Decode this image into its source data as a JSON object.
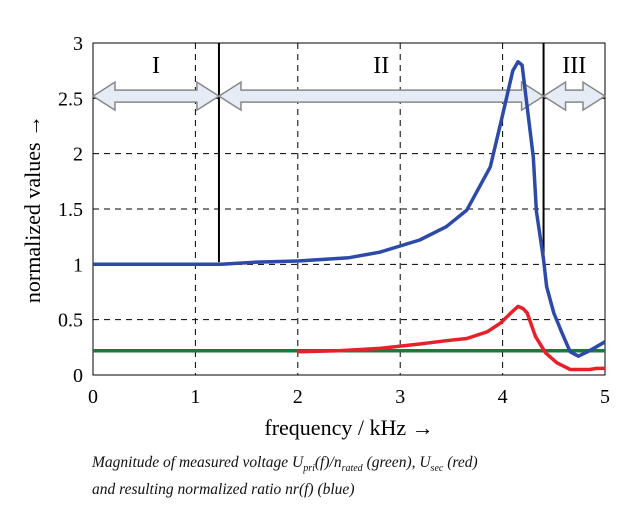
{
  "chart_data": {
    "type": "line",
    "xlabel": "frequency / kHz →",
    "ylabel": "normalized values →",
    "xlim": [
      0,
      5
    ],
    "ylim": [
      0,
      3
    ],
    "xticks": [
      0,
      1,
      2,
      3,
      4,
      5
    ],
    "yticks": [
      0,
      0.5,
      1,
      1.5,
      2,
      2.5,
      3
    ],
    "ytick_labels": [
      "0",
      "0.5",
      "1",
      "1.5",
      "2",
      "2.5",
      "3"
    ],
    "grid": true,
    "regions": [
      {
        "label": "I",
        "from": 0,
        "to": 1.23
      },
      {
        "label": "II",
        "from": 1.23,
        "to": 4.4
      },
      {
        "label": "III",
        "from": 4.4,
        "to": 5
      }
    ],
    "series": [
      {
        "color": "#1a7a3a",
        "x": [
          0,
          5
        ],
        "y": [
          0.22,
          0.22
        ]
      },
      {
        "color": "#e8202a",
        "x": [
          2.0,
          2.4,
          2.8,
          3.19,
          3.45,
          3.65,
          3.85,
          3.98,
          4.08,
          4.15,
          4.2,
          4.24,
          4.32,
          4.42,
          4.53,
          4.66,
          4.85,
          4.92,
          5.0
        ],
        "y": [
          0.21,
          0.22,
          0.24,
          0.28,
          0.31,
          0.33,
          0.39,
          0.47,
          0.56,
          0.62,
          0.6,
          0.56,
          0.35,
          0.2,
          0.11,
          0.05,
          0.05,
          0.06,
          0.06
        ]
      },
      {
        "color": "#2e4aa8",
        "x": [
          0,
          0.6,
          1.25,
          1.6,
          2.0,
          2.5,
          2.8,
          3.19,
          3.45,
          3.65,
          3.88,
          4.0,
          4.1,
          4.15,
          4.19,
          4.24,
          4.3,
          4.33,
          4.4,
          4.43,
          4.5,
          4.58,
          4.66,
          4.74,
          4.85,
          5.0
        ],
        "y": [
          1.0,
          1.0,
          1.0,
          1.02,
          1.03,
          1.06,
          1.11,
          1.22,
          1.34,
          1.49,
          1.88,
          2.35,
          2.75,
          2.83,
          2.8,
          2.42,
          1.97,
          1.48,
          1.04,
          0.8,
          0.56,
          0.38,
          0.21,
          0.17,
          0.22,
          0.3
        ]
      }
    ]
  },
  "caption": {
    "line1_a": "Magnitude of measured voltage U",
    "line1_sub1": "pri",
    "line1_b": "(f)/n",
    "line1_sub2": "rated",
    "line1_c": " (green), U",
    "line1_sub3": "sec",
    "line1_d": " (red)",
    "line2": "and resulting normalized ratio nr(f) (blue)"
  }
}
